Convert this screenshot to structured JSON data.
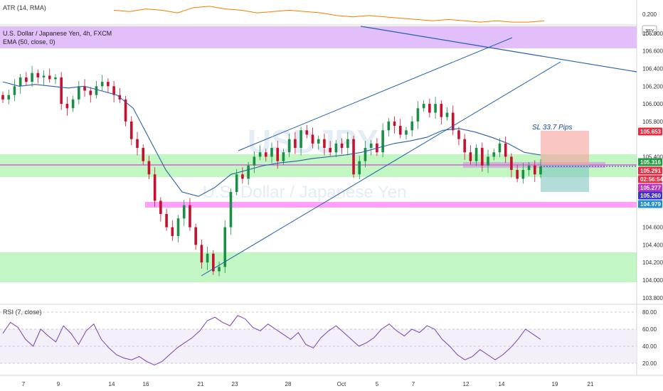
{
  "atr": {
    "legend": "ATR (14, RMA)",
    "axis_value": "0.200"
  },
  "main": {
    "title": "U.S. Dollar / Japanese Yen, 4h, FXCM",
    "ema_legend": "EMA (50, close, 0)",
    "watermark_big": "USDJPY",
    "watermark_small": "U.S. Dollar / Japanese Yen",
    "currency": "JPY",
    "sl_label": "SL 33.7 Pips"
  },
  "rsi": {
    "legend": "RSI (7, close)"
  },
  "price_axis": [
    "106.800",
    "106.600",
    "106.400",
    "106.200",
    "106.000",
    "105.800",
    "105.400",
    "104.600",
    "104.400",
    "104.200",
    "104.000",
    "103.800"
  ],
  "price_tags": [
    {
      "text": "105.653",
      "bg": "#ef2a3f",
      "fg": "#ffffff"
    },
    {
      "text": "105.316",
      "bg": "#1e9e3c",
      "fg": "#ffffff"
    },
    {
      "text": "105.291",
      "bg": "#ef2a3f",
      "fg": "#ffffff"
    },
    {
      "text": "02:56:54",
      "bg": "#ef2a3f",
      "fg": "#ffffff"
    },
    {
      "text": "105.277",
      "bg": "#c030c8",
      "fg": "#ffffff"
    },
    {
      "text": "105.260",
      "bg": "#3a2fd0",
      "fg": "#ffffff"
    },
    {
      "text": "104.979",
      "bg": "#1c8ec9",
      "fg": "#ffffff"
    }
  ],
  "rsi_axis": [
    "80.00",
    "60.00",
    "40.00",
    "20.00"
  ],
  "time_axis": [
    "7",
    "9",
    "14",
    "16",
    "21",
    "23",
    "28",
    "Oct",
    "5",
    "7",
    "12",
    "14",
    "19",
    "21"
  ],
  "colors": {
    "up": "#26a69a",
    "up_candle": "#1b8f47",
    "down": "#c8102e",
    "ema": "#2b5ea7",
    "atr": "#f57c00",
    "rsi": "#7b3fb2",
    "green_zone": "#90ee90",
    "pink_zone": "#ff80ff",
    "purple_zone": "#d8a8f8",
    "trendline": "#2060b0"
  },
  "chart_data": {
    "type": "candlestick",
    "symbol": "USDJPY",
    "timeframe": "4h",
    "y_range": [
      103.75,
      106.88
    ],
    "close_series": [
      106.05,
      106.1,
      106.2,
      106.3,
      106.25,
      106.35,
      106.3,
      106.32,
      106.28,
      106.3,
      106.0,
      105.95,
      106.05,
      106.2,
      106.15,
      106.1,
      106.2,
      106.25,
      106.2,
      106.1,
      106.05,
      105.8,
      105.6,
      105.5,
      105.35,
      105.2,
      104.9,
      104.75,
      104.6,
      104.5,
      104.7,
      104.85,
      104.6,
      104.4,
      104.2,
      104.3,
      104.1,
      104.15,
      104.6,
      105.0,
      105.2,
      105.15,
      105.3,
      105.4,
      105.45,
      105.4,
      105.5,
      105.35,
      105.45,
      105.6,
      105.5,
      105.7,
      105.65,
      105.55,
      105.6,
      105.5,
      105.45,
      105.55,
      105.5,
      105.6,
      105.2,
      105.35,
      105.5,
      105.55,
      105.45,
      105.7,
      105.8,
      105.75,
      105.65,
      105.7,
      105.8,
      105.95,
      106.0,
      105.9,
      106.0,
      105.85,
      105.9,
      105.7,
      105.6,
      105.45,
      105.35,
      105.5,
      105.3,
      105.4,
      105.45,
      105.55,
      105.4,
      105.25,
      105.15,
      105.25,
      105.3,
      105.2,
      105.29
    ],
    "ema_series": [
      106.25,
      106.2,
      106.22,
      106.2,
      106.18,
      106.2,
      106.15,
      106.1,
      105.95,
      105.6,
      105.25,
      105.0,
      104.95,
      105.05,
      105.2,
      105.25,
      105.3,
      105.33,
      105.35,
      105.38,
      105.4,
      105.42,
      105.45,
      105.5,
      105.55,
      105.58,
      105.62,
      105.7,
      105.72,
      105.68,
      105.62,
      105.55,
      105.45,
      105.42
    ],
    "atr_series": [
      0.22,
      0.21,
      0.23,
      0.22,
      0.2,
      0.24,
      0.25,
      0.23,
      0.22,
      0.2,
      0.21,
      0.22,
      0.21,
      0.2,
      0.18,
      0.17,
      0.18,
      0.17,
      0.16,
      0.15,
      0.14,
      0.15,
      0.14,
      0.13,
      0.14,
      0.13,
      0.13,
      0.14
    ],
    "rsi_series": [
      55,
      68,
      62,
      48,
      40,
      60,
      52,
      45,
      64,
      55,
      42,
      58,
      66,
      48,
      38,
      30,
      26,
      24,
      28,
      22,
      18,
      22,
      30,
      38,
      44,
      50,
      58,
      70,
      74,
      68,
      64,
      76,
      72,
      62,
      58,
      66,
      60,
      54,
      48,
      56,
      42,
      38,
      50,
      58,
      64,
      56,
      48,
      40,
      44,
      50,
      60,
      66,
      58,
      52,
      60,
      56,
      64,
      60,
      48,
      40,
      30,
      24,
      28,
      36,
      30,
      24,
      30,
      38,
      48,
      60,
      54,
      48
    ],
    "rsi_levels": [
      80,
      60,
      40,
      20
    ],
    "levels": {
      "sl_target": 105.653,
      "current_price": 105.291,
      "ema_value": 105.316,
      "mid_line": 105.277,
      "entry": 105.26,
      "target": 104.979
    },
    "annotations": [
      "SL 33.7 Pips"
    ]
  }
}
